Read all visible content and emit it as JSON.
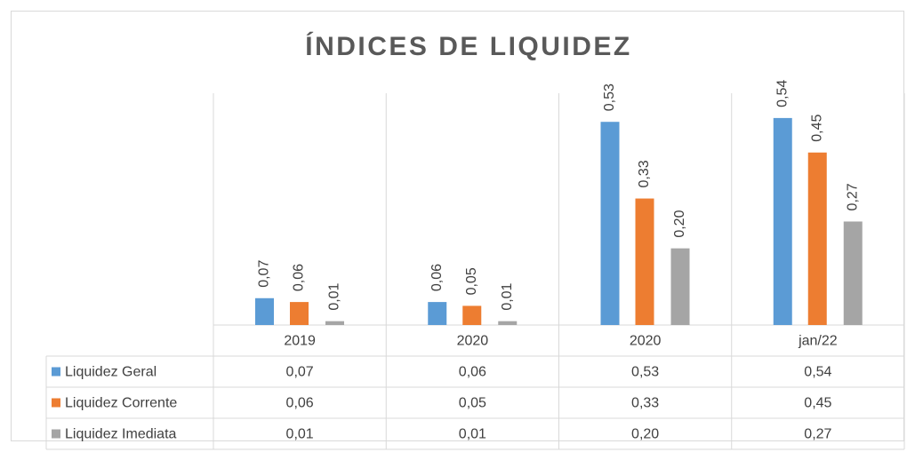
{
  "chart_data": {
    "type": "bar",
    "title": "ÍNDICES DE LIQUIDEZ",
    "categories": [
      "2019",
      "2020",
      "2020",
      "jan/22"
    ],
    "series": [
      {
        "name": "Liquidez Geral",
        "color": "#5b9bd5",
        "values": [
          0.07,
          0.06,
          0.53,
          0.54
        ],
        "value_labels": [
          "0,07",
          "0,06",
          "0,53",
          "0,54"
        ]
      },
      {
        "name": "Liquidez Corrente",
        "color": "#ed7d31",
        "values": [
          0.06,
          0.05,
          0.33,
          0.45
        ],
        "value_labels": [
          "0,06",
          "0,05",
          "0,33",
          "0,45"
        ]
      },
      {
        "name": "Liquidez Imediata",
        "color": "#a5a5a5",
        "values": [
          0.01,
          0.01,
          0.2,
          0.27
        ],
        "value_labels": [
          "0,01",
          "0,01",
          "0,20",
          "0,27"
        ]
      }
    ],
    "ylim": [
      0,
      0.6
    ],
    "data_table": true
  }
}
